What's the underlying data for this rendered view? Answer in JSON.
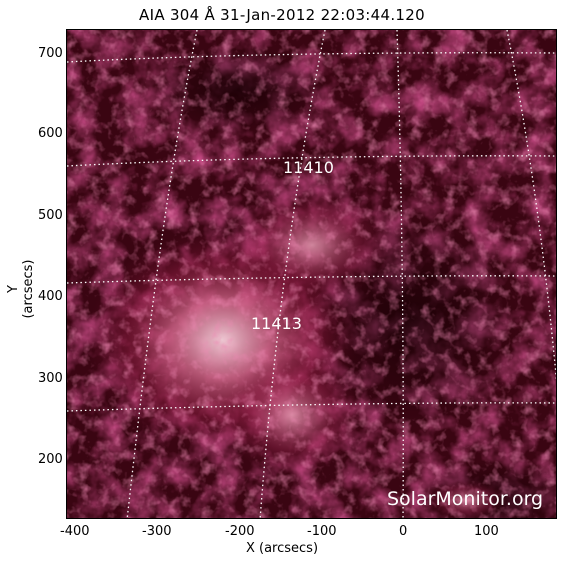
{
  "title": "AIA 304 Å 31-Jan-2012 22:03:44.120",
  "x_axis": {
    "label": "X (arcsecs)",
    "ticks": [
      "-400",
      "-300",
      "-200",
      "-100",
      "0",
      "100"
    ]
  },
  "y_axis": {
    "label": "Y (arcsecs)",
    "ticks": [
      "700",
      "600",
      "500",
      "400",
      "300",
      "200"
    ]
  },
  "active_regions": [
    {
      "id": "11410"
    },
    {
      "id": "11413"
    }
  ],
  "watermark": "SolarMonitor.org",
  "colors": {
    "background": "#2a0008",
    "plasma_mid": "#8a1438",
    "plasma_bright": "#f3c8d4",
    "grid": "#ffffff"
  }
}
